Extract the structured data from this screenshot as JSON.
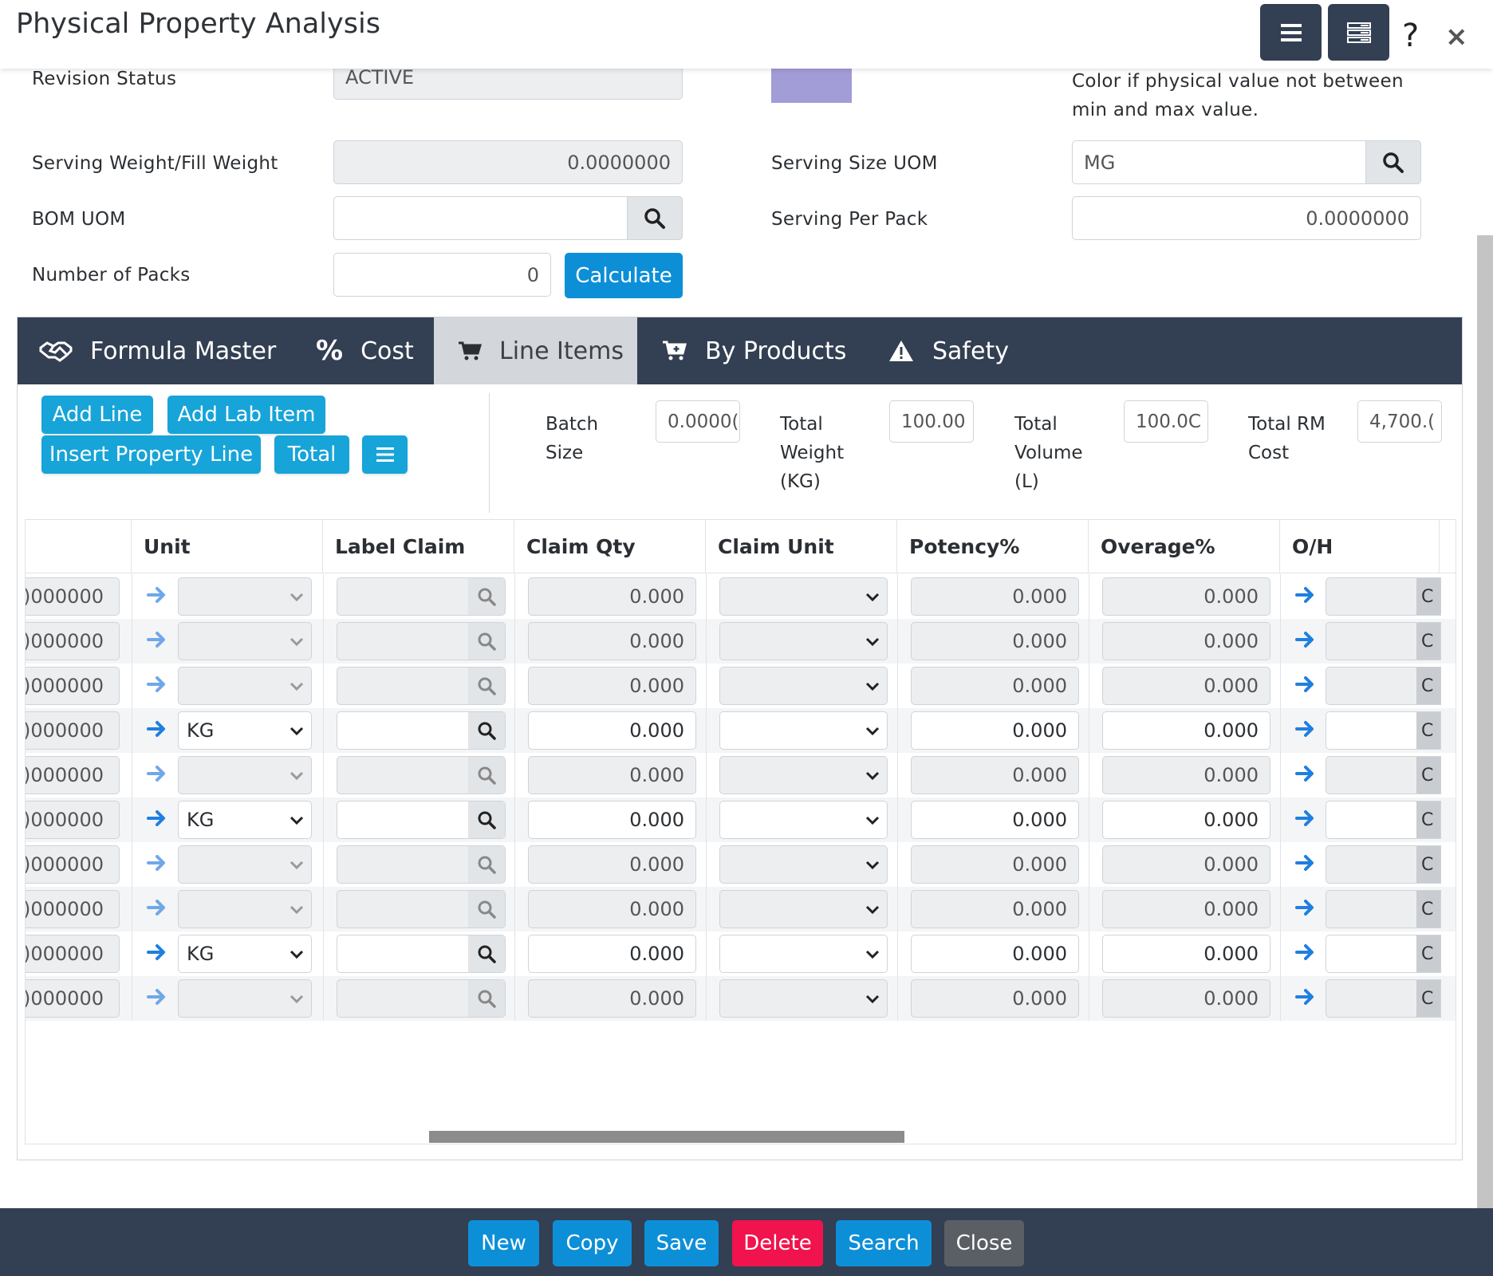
{
  "header": {
    "title": "Physical Property Analysis",
    "help_glyph": "?",
    "close_glyph": "×"
  },
  "form": {
    "revision_status": {
      "label": "Revision Status",
      "value": "ACTIVE"
    },
    "color_note": "Color if physical value not between min and max value.",
    "color_swatch": "#a29dd6",
    "serving_weight": {
      "label": "Serving Weight/Fill Weight",
      "value": "0.0000000"
    },
    "serving_size_uom": {
      "label": "Serving Size UOM",
      "value": "MG"
    },
    "bom_uom": {
      "label": "BOM UOM",
      "value": ""
    },
    "serving_per_pack": {
      "label": "Serving Per Pack",
      "value": "0.0000000"
    },
    "number_of_packs": {
      "label": "Number of Packs",
      "value": "0"
    },
    "calculate_label": "Calculate"
  },
  "tabs": [
    {
      "label": "Formula Master",
      "icon": "handshake-icon"
    },
    {
      "label": "Cost",
      "icon": "percent-icon"
    },
    {
      "label": "Line Items",
      "icon": "cart-icon",
      "active": true
    },
    {
      "label": "By Products",
      "icon": "cart-plus-icon"
    },
    {
      "label": "Safety",
      "icon": "warning-icon"
    }
  ],
  "toolbar": {
    "add_line": "Add Line",
    "add_lab_item": "Add Lab Item",
    "insert_property_line": "Insert Property Line",
    "total": "Total"
  },
  "summary": {
    "batch_size": {
      "label1": "Batch",
      "label2": "Size",
      "value": "0.0000("
    },
    "total_weight": {
      "label1": "Total",
      "label2": "Weight",
      "label3": "(KG)",
      "value": "100.00"
    },
    "total_volume": {
      "label1": "Total",
      "label2": "Volume",
      "label3": "(L)",
      "value": "100.0C"
    },
    "total_rm_cost": {
      "label1": "Total RM",
      "label2": "Cost",
      "value": "4,700.("
    }
  },
  "grid": {
    "columns": [
      "",
      "Unit",
      "Label Claim",
      "Claim Qty",
      "Claim Unit",
      "Potency%",
      "Overage%",
      "O/H"
    ],
    "rows": [
      {
        "qty": ")000000",
        "unit": "",
        "claim_qty": "0.000",
        "potency": "0.000",
        "overage": "0.000",
        "editable": false
      },
      {
        "qty": ")000000",
        "unit": "",
        "claim_qty": "0.000",
        "potency": "0.000",
        "overage": "0.000",
        "editable": false
      },
      {
        "qty": ")000000",
        "unit": "",
        "claim_qty": "0.000",
        "potency": "0.000",
        "overage": "0.000",
        "editable": false
      },
      {
        "qty": ")000000",
        "unit": "KG",
        "claim_qty": "0.000",
        "potency": "0.000",
        "overage": "0.000",
        "editable": true
      },
      {
        "qty": ")000000",
        "unit": "",
        "claim_qty": "0.000",
        "potency": "0.000",
        "overage": "0.000",
        "editable": false
      },
      {
        "qty": ")000000",
        "unit": "KG",
        "claim_qty": "0.000",
        "potency": "0.000",
        "overage": "0.000",
        "editable": true
      },
      {
        "qty": ")000000",
        "unit": "",
        "claim_qty": "0.000",
        "potency": "0.000",
        "overage": "0.000",
        "editable": false
      },
      {
        "qty": ")000000",
        "unit": "",
        "claim_qty": "0.000",
        "potency": "0.000",
        "overage": "0.000",
        "editable": false
      },
      {
        "qty": ")000000",
        "unit": "KG",
        "claim_qty": "0.000",
        "potency": "0.000",
        "overage": "0.000",
        "editable": true
      },
      {
        "qty": ")000000",
        "unit": "",
        "claim_qty": "0.000",
        "potency": "0.000",
        "overage": "0.000",
        "editable": false
      }
    ],
    "oh_edge_glyph": "C"
  },
  "footer": {
    "new": "New",
    "copy": "Copy",
    "save": "Save",
    "delete": "Delete",
    "search": "Search",
    "close": "Close"
  },
  "colors": {
    "nav_dark": "#333f52",
    "primary_blue": "#0d8fd8",
    "toolbar_cyan": "#17a4d8",
    "delete_red": "#f0134d",
    "close_gray": "#5a5f66",
    "arrow_blue": "#1f7fe0"
  }
}
